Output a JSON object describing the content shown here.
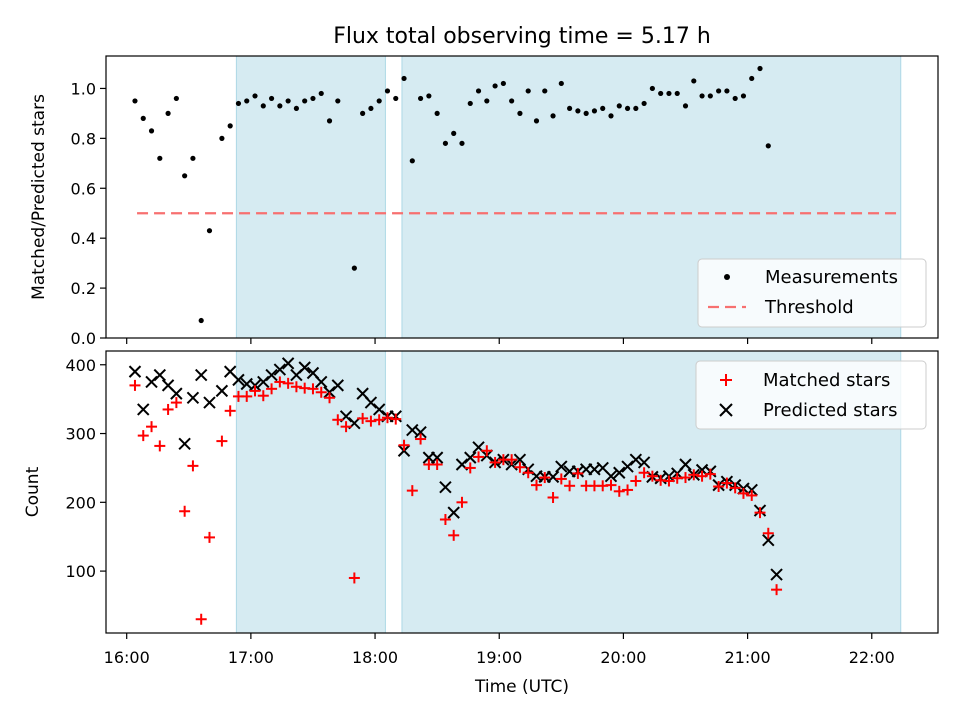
{
  "chart_data": [
    {
      "type": "scatter",
      "title": "Flux total observing time = 5.17 h",
      "ylabel": "Matched/Predicted stars",
      "xlabel": "",
      "ylim": [
        0,
        1.13
      ],
      "xlim": [
        "15:50",
        "22:32"
      ],
      "yticks": [
        "0.0",
        "0.2",
        "0.4",
        "0.6",
        "0.8",
        "1.0"
      ],
      "legend_position": "lower-right",
      "shaded_intervals": [
        [
          "16:53",
          "18:05"
        ],
        [
          "18:13",
          "22:14"
        ]
      ],
      "threshold": {
        "name": "Threshold",
        "value": 0.5,
        "x_start": "16:05",
        "x_end": "22:14",
        "color": "#f77070"
      },
      "series": [
        {
          "name": "Measurements",
          "color": "#000000",
          "points": [
            [
              "16:04",
              0.95
            ],
            [
              "16:08",
              0.88
            ],
            [
              "16:12",
              0.83
            ],
            [
              "16:16",
              0.72
            ],
            [
              "16:20",
              0.9
            ],
            [
              "16:24",
              0.96
            ],
            [
              "16:28",
              0.65
            ],
            [
              "16:32",
              0.72
            ],
            [
              "16:36",
              0.07
            ],
            [
              "16:40",
              0.43
            ],
            [
              "16:46",
              0.8
            ],
            [
              "16:50",
              0.85
            ],
            [
              "16:54",
              0.94
            ],
            [
              "16:58",
              0.95
            ],
            [
              "17:02",
              0.97
            ],
            [
              "17:06",
              0.93
            ],
            [
              "17:10",
              0.96
            ],
            [
              "17:14",
              0.93
            ],
            [
              "17:18",
              0.95
            ],
            [
              "17:22",
              0.92
            ],
            [
              "17:26",
              0.95
            ],
            [
              "17:30",
              0.96
            ],
            [
              "17:34",
              0.98
            ],
            [
              "17:38",
              0.87
            ],
            [
              "17:42",
              0.95
            ],
            [
              "17:50",
              0.28
            ],
            [
              "17:54",
              0.9
            ],
            [
              "17:58",
              0.92
            ],
            [
              "18:02",
              0.95
            ],
            [
              "18:06",
              0.99
            ],
            [
              "18:10",
              0.96
            ],
            [
              "18:14",
              1.04
            ],
            [
              "18:18",
              0.71
            ],
            [
              "18:22",
              0.96
            ],
            [
              "18:26",
              0.97
            ],
            [
              "18:30",
              0.9
            ],
            [
              "18:34",
              0.78
            ],
            [
              "18:38",
              0.82
            ],
            [
              "18:42",
              0.78
            ],
            [
              "18:46",
              0.94
            ],
            [
              "18:50",
              0.99
            ],
            [
              "18:54",
              0.95
            ],
            [
              "18:58",
              1.01
            ],
            [
              "19:02",
              1.02
            ],
            [
              "19:06",
              0.95
            ],
            [
              "19:10",
              0.9
            ],
            [
              "19:14",
              0.99
            ],
            [
              "19:18",
              0.87
            ],
            [
              "19:22",
              0.99
            ],
            [
              "19:26",
              0.89
            ],
            [
              "19:30",
              1.02
            ],
            [
              "19:34",
              0.92
            ],
            [
              "19:38",
              0.91
            ],
            [
              "19:42",
              0.9
            ],
            [
              "19:46",
              0.91
            ],
            [
              "19:50",
              0.92
            ],
            [
              "19:54",
              0.89
            ],
            [
              "19:58",
              0.93
            ],
            [
              "20:02",
              0.92
            ],
            [
              "20:06",
              0.92
            ],
            [
              "20:10",
              0.94
            ],
            [
              "20:14",
              1.0
            ],
            [
              "20:18",
              0.98
            ],
            [
              "20:22",
              0.98
            ],
            [
              "20:26",
              0.98
            ],
            [
              "20:30",
              0.93
            ],
            [
              "20:34",
              1.03
            ],
            [
              "20:38",
              0.97
            ],
            [
              "20:42",
              0.97
            ],
            [
              "20:46",
              0.99
            ],
            [
              "20:50",
              0.99
            ],
            [
              "20:54",
              0.96
            ],
            [
              "20:58",
              0.97
            ],
            [
              "21:02",
              1.04
            ],
            [
              "21:06",
              1.08
            ],
            [
              "21:10",
              0.77
            ]
          ]
        }
      ]
    },
    {
      "type": "scatter",
      "title": "",
      "ylabel": "Count",
      "xlabel": "Time (UTC)",
      "ylim": [
        10,
        420
      ],
      "xlim": [
        "15:50",
        "22:32"
      ],
      "yticks": [
        "100",
        "200",
        "300",
        "400"
      ],
      "xticks": [
        "16:00",
        "17:00",
        "18:00",
        "19:00",
        "20:00",
        "21:00",
        "22:00"
      ],
      "legend_position": "top-right",
      "shaded_intervals": [
        [
          "16:53",
          "18:05"
        ],
        [
          "18:13",
          "22:14"
        ]
      ],
      "series": [
        {
          "name": "Matched stars",
          "color": "#ff0000",
          "marker": "+",
          "points": [
            [
              "16:04",
              370
            ],
            [
              "16:08",
              297
            ],
            [
              "16:12",
              310
            ],
            [
              "16:16",
              282
            ],
            [
              "16:20",
              335
            ],
            [
              "16:24",
              345
            ],
            [
              "16:28",
              187
            ],
            [
              "16:32",
              253
            ],
            [
              "16:36",
              30
            ],
            [
              "16:40",
              149
            ],
            [
              "16:46",
              289
            ],
            [
              "16:50",
              333
            ],
            [
              "16:54",
              354
            ],
            [
              "16:58",
              354
            ],
            [
              "17:02",
              362
            ],
            [
              "17:06",
              355
            ],
            [
              "17:10",
              365
            ],
            [
              "17:14",
              375
            ],
            [
              "17:18",
              373
            ],
            [
              "17:22",
              368
            ],
            [
              "17:26",
              366
            ],
            [
              "17:30",
              365
            ],
            [
              "17:34",
              360
            ],
            [
              "17:38",
              352
            ],
            [
              "17:42",
              320
            ],
            [
              "17:46",
              310
            ],
            [
              "17:50",
              90
            ],
            [
              "17:54",
              322
            ],
            [
              "17:58",
              318
            ],
            [
              "18:02",
              320
            ],
            [
              "18:06",
              323
            ],
            [
              "18:10",
              321
            ],
            [
              "18:14",
              283
            ],
            [
              "18:18",
              217
            ],
            [
              "18:22",
              292
            ],
            [
              "18:26",
              255
            ],
            [
              "18:30",
              255
            ],
            [
              "18:34",
              175
            ],
            [
              "18:38",
              152
            ],
            [
              "18:42",
              200
            ],
            [
              "18:46",
              250
            ],
            [
              "18:50",
              266
            ],
            [
              "18:54",
              275
            ],
            [
              "18:58",
              258
            ],
            [
              "19:02",
              262
            ],
            [
              "19:06",
              262
            ],
            [
              "19:10",
              251
            ],
            [
              "19:14",
              243
            ],
            [
              "19:18",
              225
            ],
            [
              "19:22",
              236
            ],
            [
              "19:26",
              207
            ],
            [
              "19:30",
              234
            ],
            [
              "19:34",
              224
            ],
            [
              "19:38",
              242
            ],
            [
              "19:42",
              224
            ],
            [
              "19:46",
              224
            ],
            [
              "19:50",
              224
            ],
            [
              "19:54",
              225
            ],
            [
              "19:58",
              216
            ],
            [
              "20:02",
              218
            ],
            [
              "20:06",
              231
            ],
            [
              "20:10",
              243
            ],
            [
              "20:14",
              238
            ],
            [
              "20:18",
              232
            ],
            [
              "20:22",
              231
            ],
            [
              "20:26",
              235
            ],
            [
              "20:30",
              236
            ],
            [
              "20:34",
              240
            ],
            [
              "20:38",
              238
            ],
            [
              "20:42",
              241
            ],
            [
              "20:46",
              223
            ],
            [
              "20:50",
              228
            ],
            [
              "20:54",
              221
            ],
            [
              "20:58",
              213
            ],
            [
              "21:02",
              210
            ],
            [
              "21:06",
              185
            ],
            [
              "21:10",
              155
            ],
            [
              "21:14",
              73
            ]
          ]
        },
        {
          "name": "Predicted stars",
          "color": "#000000",
          "marker": "x",
          "points": [
            [
              "16:04",
              390
            ],
            [
              "16:08",
              335
            ],
            [
              "16:12",
              375
            ],
            [
              "16:16",
              385
            ],
            [
              "16:20",
              370
            ],
            [
              "16:24",
              358
            ],
            [
              "16:28",
              285
            ],
            [
              "16:32",
              352
            ],
            [
              "16:36",
              385
            ],
            [
              "16:40",
              345
            ],
            [
              "16:46",
              362
            ],
            [
              "16:50",
              390
            ],
            [
              "16:54",
              378
            ],
            [
              "16:58",
              372
            ],
            [
              "17:02",
              370
            ],
            [
              "17:06",
              375
            ],
            [
              "17:10",
              385
            ],
            [
              "17:14",
              393
            ],
            [
              "17:18",
              402
            ],
            [
              "17:22",
              385
            ],
            [
              "17:26",
              396
            ],
            [
              "17:30",
              388
            ],
            [
              "17:34",
              375
            ],
            [
              "17:38",
              360
            ],
            [
              "17:42",
              370
            ],
            [
              "17:46",
              325
            ],
            [
              "17:50",
              315
            ],
            [
              "17:54",
              358
            ],
            [
              "17:58",
              345
            ],
            [
              "18:02",
              335
            ],
            [
              "18:06",
              325
            ],
            [
              "18:10",
              325
            ],
            [
              "18:14",
              275
            ],
            [
              "18:18",
              305
            ],
            [
              "18:22",
              302
            ],
            [
              "18:26",
              265
            ],
            [
              "18:30",
              265
            ],
            [
              "18:34",
              222
            ],
            [
              "18:38",
              185
            ],
            [
              "18:42",
              255
            ],
            [
              "18:46",
              265
            ],
            [
              "18:50",
              280
            ],
            [
              "18:54",
              268
            ],
            [
              "18:58",
              258
            ],
            [
              "19:02",
              262
            ],
            [
              "19:06",
              255
            ],
            [
              "19:10",
              262
            ],
            [
              "19:14",
              248
            ],
            [
              "19:18",
              238
            ],
            [
              "19:22",
              237
            ],
            [
              "19:26",
              237
            ],
            [
              "19:30",
              252
            ],
            [
              "19:34",
              245
            ],
            [
              "19:38",
              245
            ],
            [
              "19:42",
              248
            ],
            [
              "19:46",
              248
            ],
            [
              "19:50",
              250
            ],
            [
              "19:54",
              238
            ],
            [
              "19:58",
              243
            ],
            [
              "20:02",
              252
            ],
            [
              "20:06",
              262
            ],
            [
              "20:10",
              258
            ],
            [
              "20:14",
              237
            ],
            [
              "20:18",
              235
            ],
            [
              "20:22",
              238
            ],
            [
              "20:26",
              242
            ],
            [
              "20:30",
              255
            ],
            [
              "20:34",
              240
            ],
            [
              "20:38",
              247
            ],
            [
              "20:42",
              245
            ],
            [
              "20:46",
              225
            ],
            [
              "20:50",
              230
            ],
            [
              "20:54",
              225
            ],
            [
              "20:58",
              220
            ],
            [
              "21:02",
              218
            ],
            [
              "21:06",
              188
            ],
            [
              "21:10",
              145
            ],
            [
              "21:14",
              95
            ]
          ]
        }
      ]
    }
  ]
}
